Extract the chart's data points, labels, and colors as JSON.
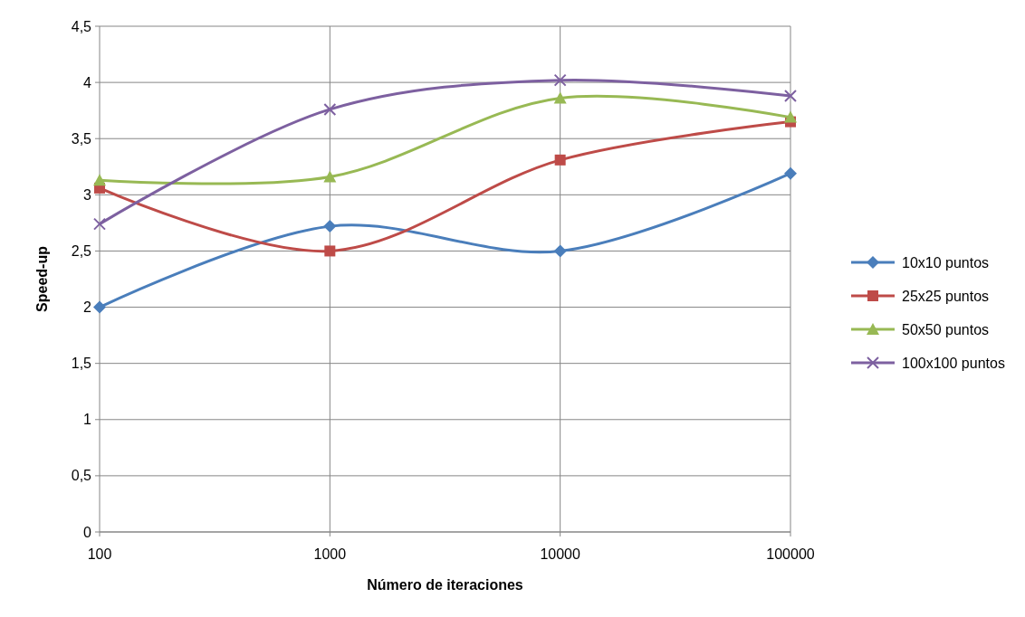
{
  "chart_data": {
    "type": "line",
    "xlabel": "Número de iteraciones",
    "ylabel": "Speed-up",
    "categories": [
      "100",
      "1000",
      "10000",
      "100000"
    ],
    "ylim": [
      0,
      4.5
    ],
    "yticks": [
      0,
      {
        "value": 0.5,
        "label": "0,5"
      },
      1,
      {
        "value": 1.5,
        "label": "1,5"
      },
      2,
      {
        "value": 2.5,
        "label": "2,5"
      },
      3,
      {
        "value": 3.5,
        "label": "3,5"
      },
      4,
      {
        "value": 4.5,
        "label": "4,5"
      }
    ],
    "grid": true,
    "legend": "right",
    "series": [
      {
        "name": "10x10 puntos",
        "color": "#4a7ebb",
        "marker": "diamond",
        "values": [
          2.0,
          2.72,
          2.5,
          3.19
        ]
      },
      {
        "name": "25x25 puntos",
        "color": "#be4b48",
        "marker": "square",
        "values": [
          3.06,
          2.5,
          3.31,
          3.65
        ]
      },
      {
        "name": "50x50 puntos",
        "color": "#98b954",
        "marker": "triangle",
        "values": [
          3.13,
          3.16,
          3.86,
          3.69
        ]
      },
      {
        "name": "100x100 puntos",
        "color": "#7d60a0",
        "marker": "cross",
        "values": [
          2.74,
          3.76,
          4.02,
          3.88
        ]
      }
    ]
  }
}
